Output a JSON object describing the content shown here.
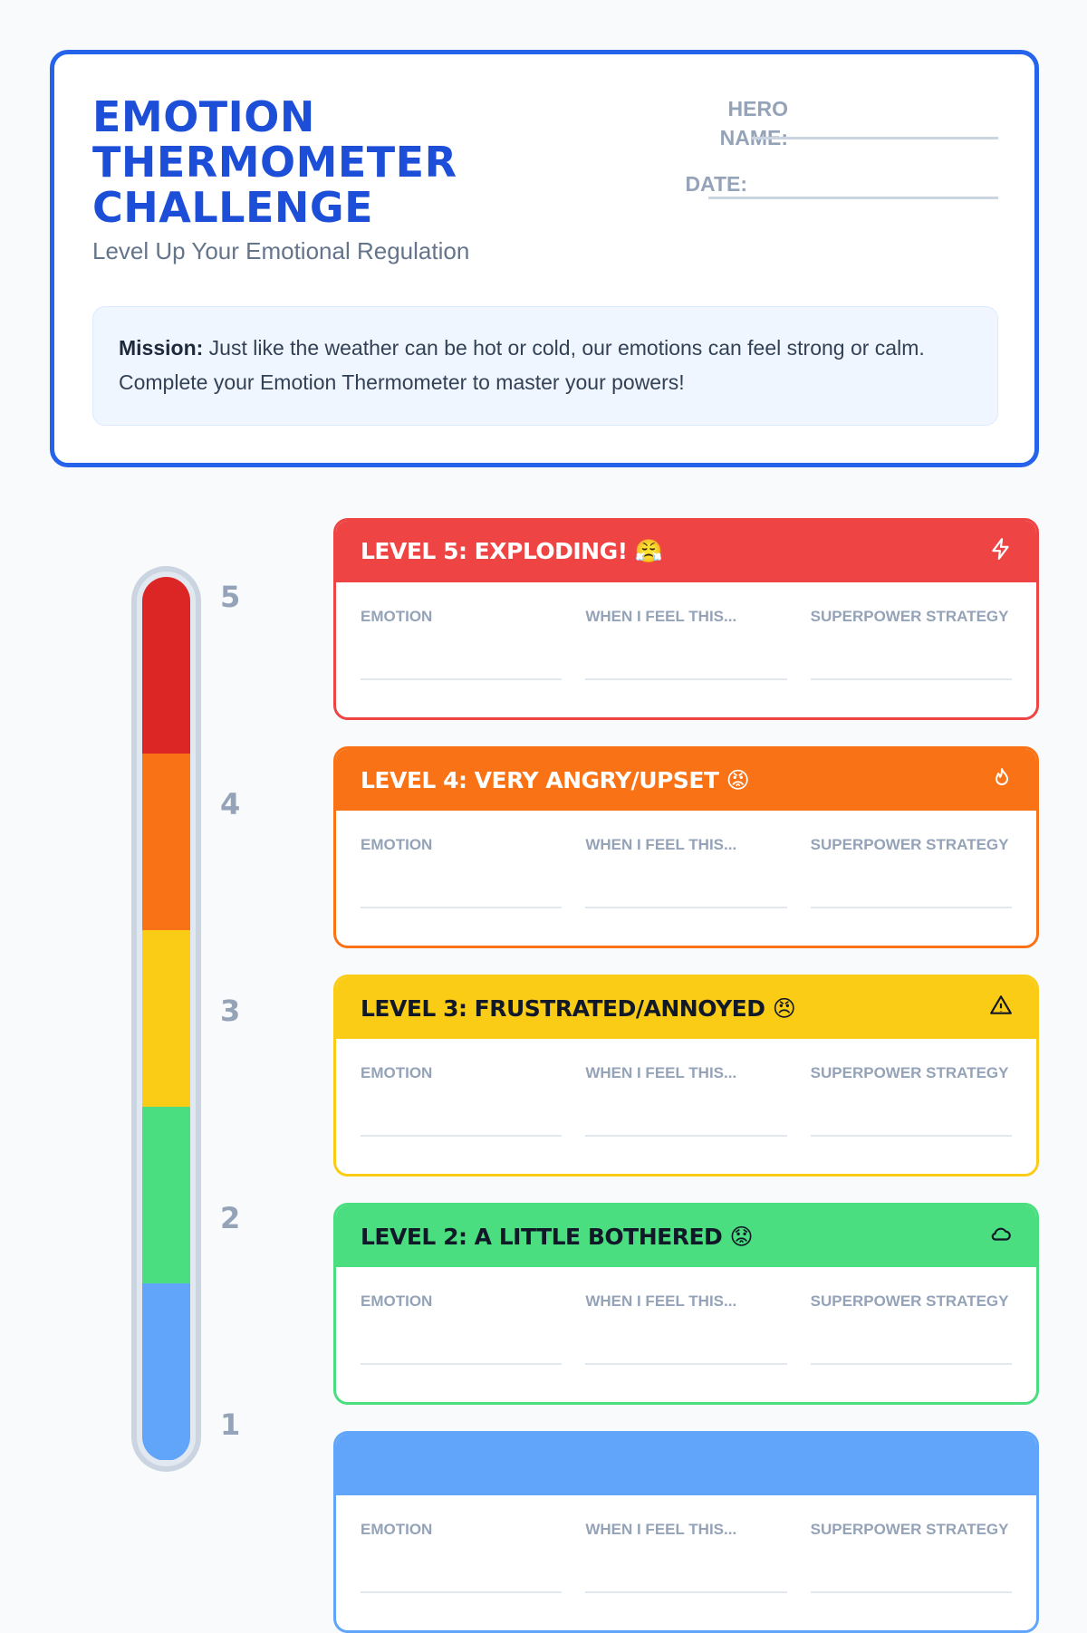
{
  "header": {
    "title": "EMOTION THERMOMETER CHALLENGE",
    "subtitle": "Level Up Your Emotional Regulation",
    "hero_name_label": "HERO NAME:",
    "date_label": "DATE:",
    "mission_label": "Mission:",
    "mission_text": " Just like the weather can be hot or cold, our emotions can feel strong or calm. Complete your Emotion Thermometer to master your powers!"
  },
  "thermometer": {
    "numbers": [
      "5",
      "4",
      "3",
      "2",
      "1"
    ],
    "colors": [
      "#dc2626",
      "#f97316",
      "#facc15",
      "#4ade80",
      "#60a5fa"
    ]
  },
  "columns": [
    "EMOTION",
    "WHEN I FEEL THIS...",
    "SUPERPOWER STRATEGY"
  ],
  "levels": [
    {
      "title": "LEVEL 5: EXPLODING! 😤",
      "icon": "lightning-icon",
      "color": "#ef4444",
      "text_color": "#ffffff"
    },
    {
      "title": "LEVEL 4: VERY ANGRY/UPSET 😡",
      "icon": "flame-icon",
      "color": "#f97316",
      "text_color": "#ffffff"
    },
    {
      "title": "LEVEL 3: FRUSTRATED/ANNOYED 😠",
      "icon": "warning-icon",
      "color": "#facc15",
      "text_color": "#111827"
    },
    {
      "title": "LEVEL 2: A LITTLE BOTHERED 😟",
      "icon": "cloud-icon",
      "color": "#4ade80",
      "text_color": "#111827"
    },
    {
      "title": "",
      "icon": "",
      "color": "#60a5fa",
      "text_color": "#ffffff"
    }
  ]
}
